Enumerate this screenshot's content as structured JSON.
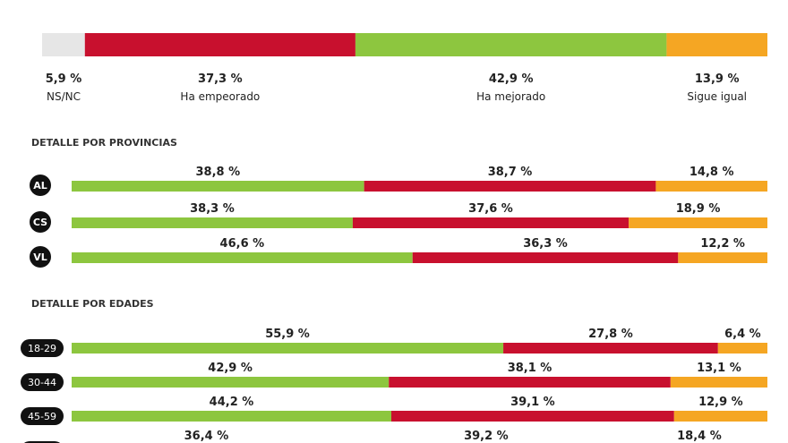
{
  "chart_data": [
    {
      "type": "bar",
      "orientation": "horizontal-stacked-100",
      "categories": [
        "NS/NC",
        "Ha empeorado",
        "Ha mejorado",
        "Sigue igual"
      ],
      "values": [
        5.9,
        37.3,
        42.9,
        13.9
      ],
      "value_labels": [
        "5,9 %",
        "37,3 %",
        "42,9 %",
        "13,9 %"
      ],
      "colors": [
        "#e6e6e6",
        "#c8102e",
        "#8dc63f",
        "#f5a623"
      ]
    },
    {
      "type": "bar",
      "orientation": "horizontal-stacked-100",
      "title": "DETALLE POR PROVINCIAS",
      "categories": [
        "AL",
        "CS",
        "VL"
      ],
      "series": [
        {
          "name": "Ha mejorado",
          "color": "#8dc63f",
          "values": [
            38.8,
            38.3,
            46.6
          ],
          "labels": [
            "38,8 %",
            "38,3 %",
            "46,6 %"
          ]
        },
        {
          "name": "Ha empeorado",
          "color": "#c8102e",
          "values": [
            38.7,
            37.6,
            36.3
          ],
          "labels": [
            "38,7 %",
            "37,6 %",
            "36,3 %"
          ]
        },
        {
          "name": "Sigue igual",
          "color": "#f5a623",
          "values": [
            14.8,
            18.9,
            12.2
          ],
          "labels": [
            "14,8 %",
            "18,9 %",
            "12,2 %"
          ]
        }
      ]
    },
    {
      "type": "bar",
      "orientation": "horizontal-stacked-100",
      "title": "DETALLE POR EDADES",
      "categories": [
        "18-29",
        "30-44",
        "45-59",
        ""
      ],
      "series": [
        {
          "name": "Ha mejorado",
          "color": "#8dc63f",
          "values": [
            55.9,
            42.9,
            44.2,
            36.4
          ],
          "labels": [
            "55,9 %",
            "42,9 %",
            "44,2 %",
            "36,4 %"
          ]
        },
        {
          "name": "Ha empeorado",
          "color": "#c8102e",
          "values": [
            27.8,
            38.1,
            39.1,
            39.2
          ],
          "labels": [
            "27,8 %",
            "38,1 %",
            "39,1 %",
            "39,2 %"
          ]
        },
        {
          "name": "Sigue igual",
          "color": "#f5a623",
          "values": [
            6.4,
            13.1,
            12.9,
            18.4
          ],
          "labels": [
            "6,4 %",
            "13,1 %",
            "12,9 %",
            "18,4 %"
          ]
        }
      ]
    }
  ]
}
